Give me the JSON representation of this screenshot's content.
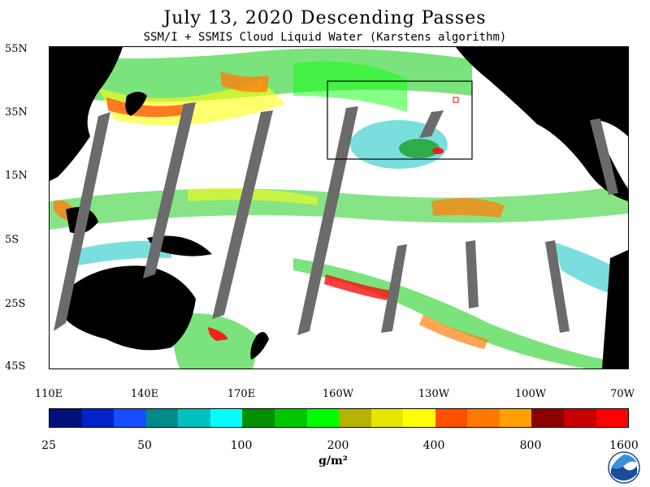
{
  "header": {
    "title": "July 13, 2020  Descending Passes",
    "subtitle": "SSM/I + SSMIS Cloud Liquid Water (Karstens algorithm)"
  },
  "map": {
    "lat_labels": [
      "55N",
      "35N",
      "15N",
      "5S",
      "25S",
      "45S"
    ],
    "lon_labels": [
      "110E",
      "140E",
      "170E",
      "160W",
      "130W",
      "100W",
      "70W"
    ],
    "colors": {
      "land": "#000000",
      "ocean_clear": "#ffffff",
      "no_data_swath": "#6b6b6b",
      "box": "#000000"
    }
  },
  "colorbar": {
    "colors": [
      "#00127a",
      "#0024c8",
      "#1a4cff",
      "#008a8a",
      "#00c0c0",
      "#00ffff",
      "#009000",
      "#00c800",
      "#00ff00",
      "#b4b400",
      "#e6e600",
      "#ffff00",
      "#ff5000",
      "#ff7800",
      "#ffa000",
      "#8b0000",
      "#c80000",
      "#ff0000"
    ],
    "tick_labels": [
      "25",
      "50",
      "100",
      "200",
      "400",
      "800",
      "1600"
    ],
    "units": "g/m²"
  },
  "logo": {
    "icon": "noaa-logo"
  }
}
